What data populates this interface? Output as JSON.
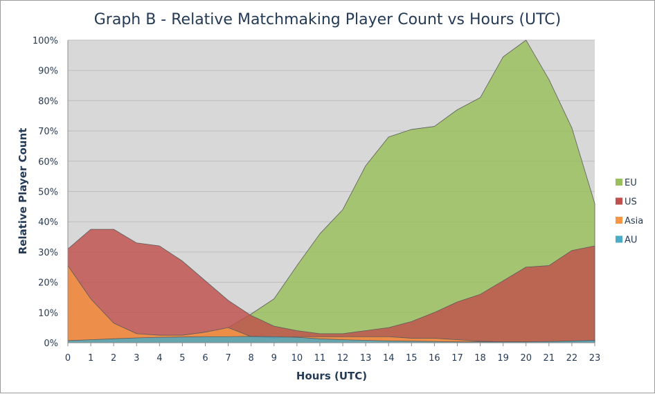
{
  "chart_data": {
    "type": "area",
    "title": "Graph B - Relative Matchmaking Player Count vs Hours (UTC)",
    "xlabel": "Hours (UTC)",
    "ylabel": "Relative Player Count",
    "x": [
      0,
      1,
      2,
      3,
      4,
      5,
      6,
      7,
      8,
      9,
      10,
      11,
      12,
      13,
      14,
      15,
      16,
      17,
      18,
      19,
      20,
      21,
      22,
      23
    ],
    "x_tick_labels": [
      "0",
      "1",
      "2",
      "3",
      "4",
      "5",
      "6",
      "7",
      "8",
      "9",
      "10",
      "11",
      "12",
      "13",
      "14",
      "15",
      "16",
      "17",
      "18",
      "19",
      "20",
      "21",
      "22",
      "23"
    ],
    "ylim": [
      0,
      100
    ],
    "y_tick_labels": [
      "0%",
      "10%",
      "20%",
      "30%",
      "40%",
      "50%",
      "60%",
      "70%",
      "80%",
      "90%",
      "100%"
    ],
    "grid": true,
    "legend_position": "right",
    "series": [
      {
        "name": "EU",
        "color": "#98bf5c",
        "values": [
          0.5,
          1,
          1.5,
          1.5,
          1.8,
          2,
          2.5,
          5,
          9.5,
          14.5,
          25.5,
          36,
          44,
          58.5,
          68,
          70.5,
          71.5,
          77,
          81,
          94.5,
          100,
          87,
          71,
          46
        ]
      },
      {
        "name": "US",
        "color": "#c0504d",
        "values": [
          31,
          37.5,
          37.5,
          33,
          32,
          27,
          20.5,
          14,
          9,
          5.5,
          4,
          3,
          3,
          4,
          5,
          7,
          10,
          13.5,
          16,
          20.5,
          25,
          25.5,
          30.5,
          32
        ]
      },
      {
        "name": "Asia",
        "color": "#f79646",
        "values": [
          25.5,
          14.5,
          6.5,
          3,
          2.5,
          2.5,
          3.5,
          5,
          2,
          1.5,
          2,
          2,
          2,
          2,
          2,
          1.5,
          1.5,
          1,
          0.5,
          0.3,
          0.3,
          0.3,
          0.3,
          0.5
        ]
      },
      {
        "name": "AU",
        "color": "#4bacc6",
        "values": [
          0.7,
          1,
          1.3,
          1.6,
          1.8,
          1.9,
          2,
          2,
          2.1,
          2,
          1.8,
          1.3,
          1,
          0.8,
          0.6,
          0.5,
          0.4,
          0.3,
          0.3,
          0.3,
          0.3,
          0.4,
          0.6,
          0.8
        ]
      }
    ]
  }
}
